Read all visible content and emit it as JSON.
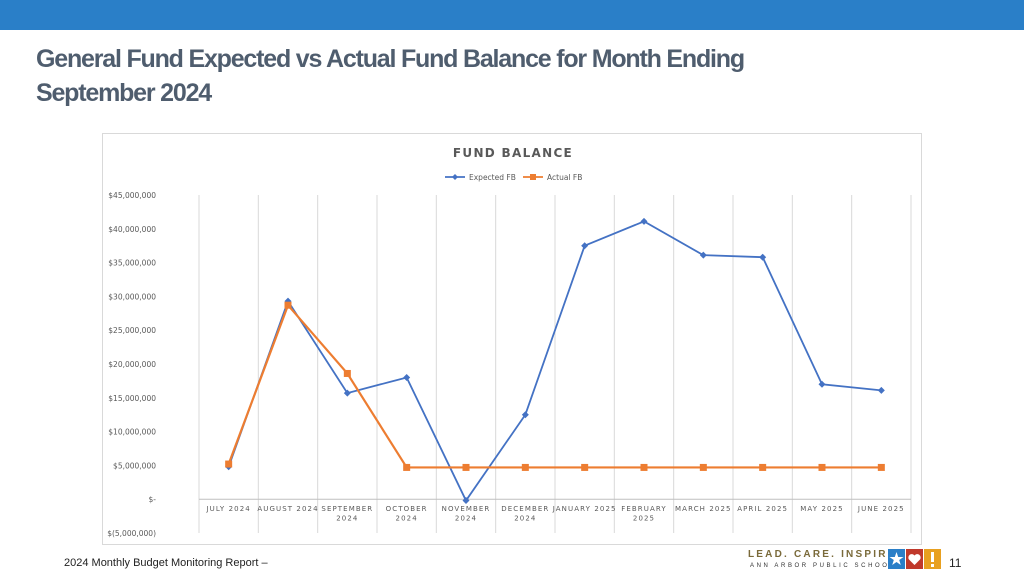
{
  "slide": {
    "title": "General Fund Expected vs Actual Fund Balance for Month Ending September 2024",
    "footer": "2024 Monthly Budget Monitoring Report –",
    "page_number": "11"
  },
  "logo": {
    "tagline": "LEAD. CARE. INSPIRE.",
    "org": "ANN ARBOR PUBLIC SCHOOLS",
    "colors": {
      "star_bg": "#2a7fc8",
      "heart_bg": "#c0392b",
      "exclaim_bg": "#e8a020"
    }
  },
  "colors": {
    "topbar": "#2a7fc8",
    "expected": "#4472c4",
    "actual": "#ed7d31"
  },
  "chart_data": {
    "type": "line",
    "title": "FUND BALANCE",
    "legend_position": "top",
    "grid": "vertical",
    "categories": [
      [
        "JULY 2024"
      ],
      [
        "AUGUST 2024"
      ],
      [
        "SEPTEMBER",
        "2024"
      ],
      [
        "OCTOBER",
        "2024"
      ],
      [
        "NOVEMBER",
        "2024"
      ],
      [
        "DECEMBER",
        "2024"
      ],
      [
        "JANUARY 2025"
      ],
      [
        "FEBRUARY",
        "2025"
      ],
      [
        "MARCH 2025"
      ],
      [
        "APRIL 2025"
      ],
      [
        "MAY 2025"
      ],
      [
        "JUNE 2025"
      ]
    ],
    "ylim": [
      -5000000,
      45000000
    ],
    "yticks": [
      45000000,
      40000000,
      35000000,
      30000000,
      25000000,
      20000000,
      15000000,
      10000000,
      5000000,
      0,
      -5000000
    ],
    "ytick_labels": [
      "$45,000,000",
      "$40,000,000",
      "$35,000,000",
      "$30,000,000",
      "$25,000,000",
      "$20,000,000",
      "$15,000,000",
      "$10,000,000",
      "$5,000,000",
      "$-",
      "$(5,000,000)"
    ],
    "series": [
      {
        "name": "Expected FB",
        "marker": "diamond",
        "values": [
          4800000,
          29300000,
          15700000,
          18000000,
          -200000,
          12500000,
          37500000,
          41100000,
          36100000,
          35800000,
          17000000,
          16100000
        ]
      },
      {
        "name": "Actual FB",
        "marker": "square",
        "values": [
          5200000,
          28700000,
          18600000,
          4700000,
          4700000,
          4700000,
          4700000,
          4700000,
          4700000,
          4700000,
          4700000,
          4700000
        ]
      }
    ]
  }
}
